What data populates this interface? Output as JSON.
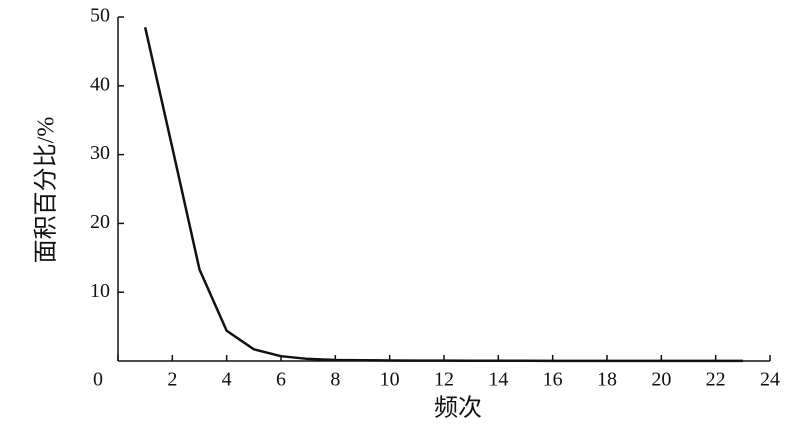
{
  "chart_data": {
    "type": "line",
    "x_label": "频次",
    "y_label": "面积百分比/%",
    "x": [
      1,
      2,
      3,
      4,
      5,
      6,
      7,
      8,
      9,
      10,
      11,
      12,
      13,
      14,
      15,
      16,
      17,
      18,
      19,
      20,
      21,
      22,
      23
    ],
    "series": [
      {
        "name": "面积百分比",
        "color": "#111111",
        "values": [
          48.5,
          31,
          13.3,
          4.4,
          1.7,
          0.7,
          0.3,
          0.15,
          0.1,
          0.08,
          0.06,
          0.05,
          0.04,
          0.03,
          0.03,
          0.02,
          0.02,
          0.02,
          0.01,
          0.01,
          0.01,
          0.01,
          0.01
        ]
      }
    ],
    "xlim": [
      0,
      24
    ],
    "xticks": [
      0,
      2,
      4,
      6,
      8,
      10,
      12,
      14,
      16,
      18,
      20,
      22,
      24
    ],
    "ylim": [
      0,
      50
    ],
    "yticks": [
      10,
      20,
      30,
      40,
      50
    ],
    "grid": false
  }
}
